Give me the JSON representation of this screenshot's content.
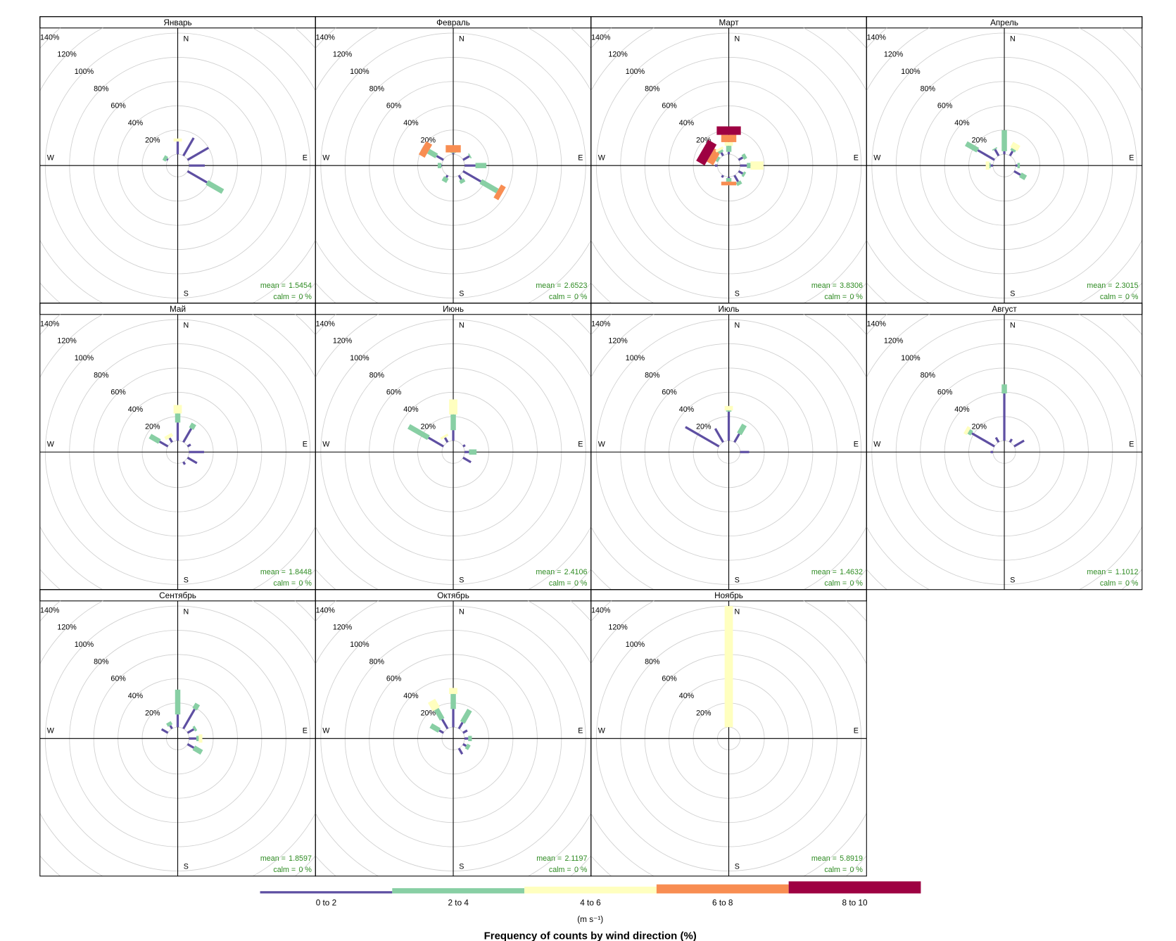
{
  "chart_data": {
    "type": "windrose",
    "title": "Frequency of counts by wind direction (%)",
    "legend_title": "(m s⁻¹)",
    "bins": [
      {
        "name": "0 to 2",
        "color": "#5e4fa2"
      },
      {
        "name": "2 to 4",
        "color": "#88cfa4"
      },
      {
        "name": "4 to 6",
        "color": "#ffffbf"
      },
      {
        "name": "6 to 8",
        "color": "#f88d52"
      },
      {
        "name": "8 to 10",
        "color": "#9e0142"
      }
    ],
    "directions_deg": [
      0,
      30,
      60,
      90,
      120,
      150,
      180,
      210,
      240,
      270,
      300,
      330
    ],
    "compass": [
      "N",
      "E",
      "S",
      "W"
    ],
    "rlim": [
      0,
      140
    ],
    "rticks": [
      {
        "value": 20,
        "label": "20%"
      },
      {
        "value": 40,
        "label": "40%"
      },
      {
        "value": 60,
        "label": "60%"
      },
      {
        "value": 80,
        "label": "80%"
      },
      {
        "value": 100,
        "label": "100%"
      },
      {
        "value": 120,
        "label": "120%"
      },
      {
        "value": 140,
        "label": "140%"
      }
    ],
    "grid": true,
    "mean_label": "mean =",
    "calm_label": "calm =",
    "panels": [
      {
        "title": "Январь",
        "mean": 1.5454,
        "calm": {
          "value": 0,
          "label": "0 %"
        },
        "values": [
          [
            10.5,
            17,
            20,
            13,
            18.6,
            0,
            0,
            0,
            0,
            0,
            1,
            0
          ],
          [
            0,
            0,
            0,
            0,
            15,
            0,
            0,
            0,
            0,
            0,
            3,
            0
          ],
          [
            2.5,
            0,
            0,
            0,
            0,
            0,
            0,
            0,
            0,
            0,
            0,
            0
          ],
          [
            0,
            0,
            0,
            0,
            0,
            0,
            0,
            0,
            0,
            0,
            0,
            0
          ],
          [
            0,
            0,
            0,
            0,
            0,
            0,
            0,
            0,
            0,
            0,
            0,
            0
          ]
        ]
      },
      {
        "title": "Февраль",
        "mean": 2.6523,
        "calm": {
          "value": 0,
          "label": "0 %"
        },
        "values": [
          [
            1,
            0,
            6,
            9,
            17,
            4,
            0,
            2,
            0,
            0.5,
            6.5,
            0
          ],
          [
            0.5,
            0,
            1,
            9,
            15.7,
            3,
            0,
            4,
            0,
            3,
            7.8,
            0
          ],
          [
            0,
            0,
            0,
            0,
            0,
            0,
            0,
            0,
            0,
            0,
            0,
            0
          ],
          [
            6,
            0,
            0,
            0,
            4.5,
            0,
            0,
            0,
            0,
            0,
            5.7,
            0
          ],
          [
            0,
            0,
            0,
            0,
            0,
            0,
            0,
            0,
            0,
            0,
            0,
            0
          ]
        ]
      },
      {
        "title": "Март",
        "mean": 3.8306,
        "calm": {
          "value": 0,
          "label": "0 %"
        },
        "values": [
          [
            2,
            0,
            4,
            5.6,
            4,
            6,
            1,
            2,
            0,
            2,
            0,
            3
          ],
          [
            5,
            0,
            3,
            3,
            2,
            3,
            3,
            0,
            0,
            0,
            2,
            2
          ],
          [
            3,
            0,
            0,
            10.7,
            0,
            0,
            0,
            0,
            0,
            0,
            0,
            2
          ],
          [
            6,
            0,
            0,
            0,
            0,
            0,
            3,
            0,
            0,
            0,
            6,
            0
          ],
          [
            7,
            0,
            0,
            0,
            0,
            0,
            0,
            0,
            0,
            0,
            8,
            0
          ]
        ]
      },
      {
        "title": "Апрель",
        "mean": 2.3015,
        "calm": {
          "value": 0,
          "label": "0 %"
        },
        "values": [
          [
            2.5,
            4.3,
            0,
            1.5,
            6,
            0,
            0,
            0,
            0,
            2,
            16,
            6
          ],
          [
            17.4,
            2,
            0,
            2,
            5,
            0,
            0,
            0,
            0,
            1,
            11,
            1
          ],
          [
            0,
            5,
            0,
            0,
            0,
            0,
            0,
            0,
            0,
            3,
            0,
            0
          ],
          [
            0,
            0,
            0,
            0,
            0,
            0,
            0,
            0,
            0,
            0,
            0,
            0
          ],
          [
            0,
            0,
            0,
            0,
            0,
            0,
            0,
            0,
            0,
            0,
            0,
            0
          ]
        ]
      },
      {
        "title": "Май",
        "mean": 1.8448,
        "calm": {
          "value": 0,
          "label": "0 %"
        },
        "values": [
          [
            15,
            13,
            3,
            12.4,
            9,
            2.5,
            0,
            0,
            0,
            0,
            8,
            4
          ],
          [
            7.5,
            4.5,
            0,
            0,
            0,
            0,
            0,
            0,
            0,
            0,
            9,
            0
          ],
          [
            7,
            0,
            0,
            0,
            0,
            0,
            0,
            0,
            0,
            0,
            0,
            3
          ],
          [
            0,
            0,
            0,
            0,
            0,
            0,
            0,
            0,
            0,
            0,
            0,
            0
          ],
          [
            0,
            0,
            0,
            0,
            0,
            0,
            0,
            0,
            0,
            0,
            0,
            0
          ]
        ]
      },
      {
        "title": "Июнь",
        "mean": 2.4106,
        "calm": {
          "value": 0,
          "label": "0 %"
        },
        "values": [
          [
            8.7,
            0,
            2,
            3.7,
            7.5,
            0,
            0,
            0,
            0,
            0,
            14.3,
            4.3
          ],
          [
            13,
            0,
            0,
            6.2,
            0,
            0,
            0,
            0,
            0,
            0,
            18.7,
            0
          ],
          [
            12.4,
            0,
            0,
            0,
            0,
            0,
            0,
            0,
            0,
            0,
            0,
            2
          ],
          [
            0,
            0,
            0,
            0,
            0,
            0,
            0,
            0,
            0,
            0,
            0,
            0
          ],
          [
            0,
            0,
            0,
            0,
            0,
            0,
            0,
            0,
            0,
            0,
            0,
            0
          ]
        ]
      },
      {
        "title": "Июль",
        "mean": 1.4632,
        "calm": {
          "value": 0,
          "label": "0 %"
        },
        "values": [
          [
            24,
            8,
            0,
            7.5,
            0,
            0,
            0,
            0,
            0,
            0,
            32,
            13
          ],
          [
            1,
            8.5,
            0,
            0,
            0,
            0,
            0,
            0,
            0,
            0,
            0,
            0
          ],
          [
            3.7,
            0,
            0,
            0,
            0,
            0,
            0,
            0,
            0,
            0,
            0,
            0
          ],
          [
            0,
            0,
            0,
            0,
            0,
            0,
            0,
            0,
            0,
            0,
            0,
            0
          ],
          [
            0,
            0,
            0,
            0,
            0,
            0,
            0,
            0,
            0,
            0,
            0,
            0
          ]
        ]
      },
      {
        "title": "Август",
        "mean": 1.1012,
        "calm": {
          "value": 0,
          "label": "0 %"
        },
        "values": [
          [
            39,
            3,
            9.5,
            0,
            0,
            0,
            0,
            0,
            0,
            2,
            21.6,
            4.5
          ],
          [
            7.5,
            0,
            0,
            0,
            0,
            0,
            0,
            0,
            0,
            0,
            3,
            0
          ],
          [
            0,
            0,
            0,
            0,
            0,
            0,
            0,
            0,
            0,
            0,
            3,
            0
          ],
          [
            0,
            0,
            0,
            0,
            0,
            0,
            0,
            0,
            0,
            0,
            0,
            0
          ],
          [
            0,
            0,
            0,
            0,
            0,
            0,
            0,
            0,
            0,
            0,
            0,
            0
          ]
        ]
      },
      {
        "title": "Сентябрь",
        "mean": 1.8597,
        "calm": {
          "value": 0,
          "label": "0 %"
        },
        "values": [
          [
            10.5,
            18.6,
            6,
            6,
            6,
            0,
            0,
            0,
            0,
            0,
            6,
            3
          ],
          [
            20.5,
            5,
            2,
            2,
            7.5,
            0,
            0,
            0,
            0,
            0,
            0,
            3
          ],
          [
            0,
            0,
            0,
            3,
            0,
            0,
            0,
            0,
            0,
            0,
            0,
            0
          ],
          [
            0,
            0,
            0,
            0,
            0,
            0,
            0,
            0,
            0,
            0,
            0,
            0
          ],
          [
            0,
            0,
            0,
            0,
            0,
            0,
            0,
            0,
            0,
            0,
            0,
            0
          ]
        ]
      },
      {
        "title": "Октябрь",
        "mean": 2.1197,
        "calm": {
          "value": 0,
          "label": "0 %"
        },
        "values": [
          [
            15,
            6,
            4,
            3,
            3,
            5.5,
            0,
            0,
            0,
            0,
            4,
            9
          ],
          [
            12.4,
            11.8,
            0,
            3,
            3,
            0,
            0,
            0,
            0,
            0,
            8,
            9.6
          ],
          [
            5,
            0,
            0,
            0,
            0,
            0,
            0,
            0,
            0,
            0,
            0,
            8
          ],
          [
            0,
            0,
            0,
            0,
            0,
            0,
            0,
            0,
            0,
            0,
            0,
            0
          ],
          [
            0,
            0,
            0,
            0,
            0,
            0,
            0,
            0,
            0,
            0,
            0,
            0
          ]
        ]
      },
      {
        "title": "Ноябрь",
        "mean": 5.8919,
        "calm": {
          "value": 0,
          "label": "0 %"
        },
        "values": [
          [
            0,
            0,
            0,
            0,
            0,
            0,
            0,
            0,
            0,
            0,
            0,
            0
          ],
          [
            0,
            0,
            0,
            0,
            0,
            0,
            0,
            0,
            0,
            0,
            0,
            0
          ],
          [
            100,
            0,
            0,
            0,
            0,
            0,
            0,
            0,
            0,
            0,
            0,
            0
          ],
          [
            0,
            0,
            0,
            0,
            0,
            0,
            0,
            0,
            0,
            0,
            0,
            0
          ],
          [
            0,
            0,
            0,
            0,
            0,
            0,
            0,
            0,
            0,
            0,
            0,
            0
          ]
        ]
      }
    ]
  }
}
